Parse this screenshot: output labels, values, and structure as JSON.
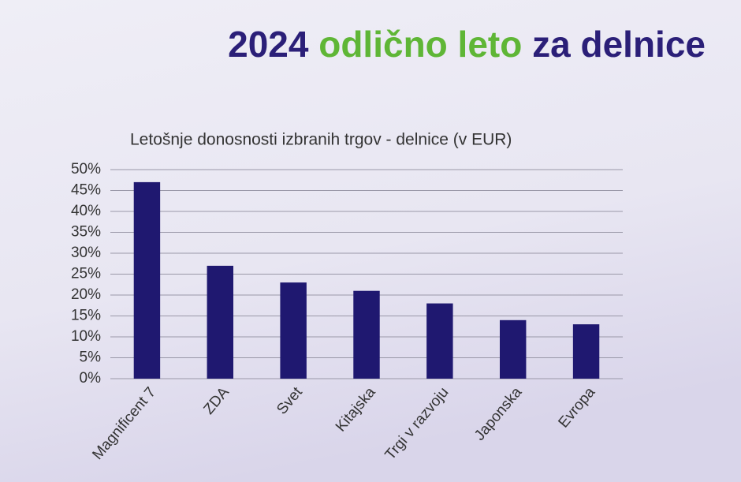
{
  "slide_title": [
    {
      "text": "2024",
      "color": "#2b1f78"
    },
    {
      "text": "odlično leto",
      "color": "#5fb636"
    },
    {
      "text": "za delnice",
      "color": "#2b1f78"
    }
  ],
  "chart_data": {
    "type": "bar",
    "title": "Letošnje donosnosti izbranih trgov - delnice (v EUR)",
    "categories": [
      "Magnificent 7",
      "ZDA",
      "Svet",
      "Kitajska",
      "Trgi v razvoju",
      "Japonska",
      "Evropa"
    ],
    "values": [
      47,
      27,
      23,
      21,
      18,
      14,
      13
    ],
    "color": "#1f1870",
    "ylim": [
      0,
      50
    ],
    "yticks": [
      {
        "value": 0,
        "label": "0%"
      },
      {
        "value": 5,
        "label": "5%"
      },
      {
        "value": 10,
        "label": "10%"
      },
      {
        "value": 15,
        "label": "15%"
      },
      {
        "value": 20,
        "label": "20%"
      },
      {
        "value": 25,
        "label": "25%"
      },
      {
        "value": 30,
        "label": "30%"
      },
      {
        "value": 35,
        "label": "35%"
      },
      {
        "value": 40,
        "label": "40%"
      },
      {
        "value": 45,
        "label": "45%"
      },
      {
        "value": 50,
        "label": "50%"
      }
    ],
    "grid": true
  }
}
